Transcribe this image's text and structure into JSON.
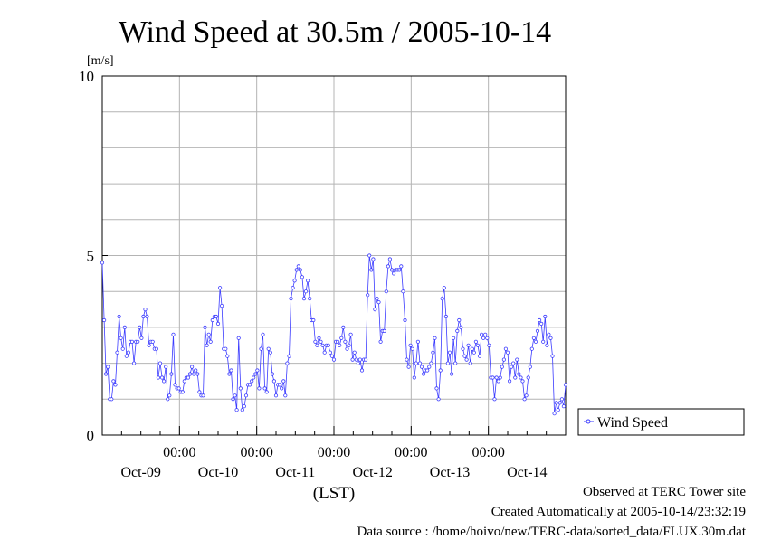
{
  "chart_data": {
    "type": "line",
    "title": "Wind Speed at 30.5m / 2005-10-14",
    "ylabel": "[m/s]",
    "xlabel": "(LST)",
    "ylim": [
      0,
      10
    ],
    "y_ticks": [
      "0",
      "5",
      "10"
    ],
    "x_tick_labels": [
      "00:00",
      "00:00",
      "00:00",
      "00:00",
      "00:00"
    ],
    "x_date_labels": [
      "Oct-09",
      "Oct-10",
      "Oct-11",
      "Oct-12",
      "Oct-13",
      "Oct-14"
    ],
    "grid": true,
    "legend_position": "right",
    "colors": {
      "series": "#3b3bff"
    },
    "series": [
      {
        "name": "Wind Speed",
        "values": [
          4.8,
          3.2,
          1.7,
          1.9,
          1.0,
          1.0,
          1.5,
          1.4,
          2.3,
          3.3,
          2.7,
          2.4,
          3.0,
          2.2,
          2.3,
          2.6,
          2.6,
          2.0,
          2.6,
          2.6,
          3.0,
          2.7,
          3.3,
          3.5,
          3.3,
          2.5,
          2.6,
          2.6,
          2.4,
          2.4,
          1.6,
          2.0,
          1.6,
          1.5,
          1.9,
          1.0,
          1.1,
          1.7,
          2.8,
          1.4,
          1.3,
          1.3,
          1.2,
          1.2,
          1.5,
          1.6,
          1.6,
          1.7,
          1.9,
          1.7,
          1.8,
          1.7,
          1.2,
          1.1,
          1.1,
          3.0,
          2.5,
          2.8,
          2.6,
          3.2,
          3.3,
          3.3,
          3.1,
          4.1,
          3.6,
          2.4,
          2.4,
          2.2,
          1.7,
          1.8,
          1.0,
          1.1,
          0.7,
          2.7,
          1.3,
          0.7,
          0.8,
          1.1,
          1.4,
          1.4,
          1.5,
          1.6,
          1.7,
          1.8,
          1.3,
          2.4,
          2.8,
          1.3,
          1.2,
          2.4,
          2.3,
          1.7,
          1.5,
          1.1,
          1.4,
          1.4,
          1.3,
          1.5,
          1.1,
          2.0,
          2.2,
          3.8,
          4.1,
          4.3,
          4.6,
          4.7,
          4.6,
          4.4,
          3.8,
          4.0,
          4.3,
          3.8,
          3.2,
          3.2,
          2.6,
          2.5,
          2.7,
          2.6,
          2.5,
          2.3,
          2.5,
          2.5,
          2.3,
          2.2,
          2.1,
          2.6,
          2.6,
          2.5,
          2.7,
          3.0,
          2.6,
          2.4,
          2.5,
          2.8,
          2.1,
          2.3,
          2.1,
          2.0,
          2.1,
          1.8,
          2.1,
          2.1,
          3.9,
          5.0,
          4.6,
          4.9,
          3.5,
          3.8,
          3.7,
          2.6,
          2.9,
          2.9,
          4.0,
          4.7,
          4.9,
          4.6,
          4.5,
          4.6,
          4.6,
          4.6,
          4.7,
          4.0,
          3.2,
          2.1,
          1.9,
          2.5,
          2.4,
          1.6,
          2.0,
          2.6,
          2.0,
          1.9,
          1.7,
          1.8,
          1.8,
          1.9,
          2.0,
          2.3,
          2.7,
          1.3,
          1.0,
          1.8,
          3.8,
          4.1,
          3.3,
          2.0,
          2.3,
          1.7,
          2.7,
          2.0,
          2.9,
          3.2,
          3.0,
          2.4,
          2.2,
          2.1,
          2.5,
          2.0,
          2.4,
          2.3,
          2.6,
          2.5,
          2.2,
          2.8,
          2.7,
          2.8,
          2.7,
          2.5,
          1.6,
          1.6,
          1.0,
          1.6,
          1.5,
          1.6,
          1.9,
          2.1,
          2.4,
          2.3,
          1.5,
          1.9,
          2.0,
          1.6,
          2.1,
          1.7,
          1.6,
          1.5,
          1.0,
          1.1,
          1.6,
          1.9,
          2.4,
          2.7,
          2.6,
          2.9,
          3.2,
          3.1,
          2.6,
          3.3,
          2.5,
          2.8,
          2.7,
          2.2,
          0.6,
          0.9,
          0.7,
          0.9,
          1.0,
          0.8,
          1.4
        ]
      }
    ]
  },
  "footer": {
    "observed": "Observed at TERC Tower site",
    "created": "Created Automatically at 2005-10-14/23:32:19",
    "source": "Data source : /home/hoivo/new/TERC-data/sorted_data/FLUX.30m.dat"
  }
}
